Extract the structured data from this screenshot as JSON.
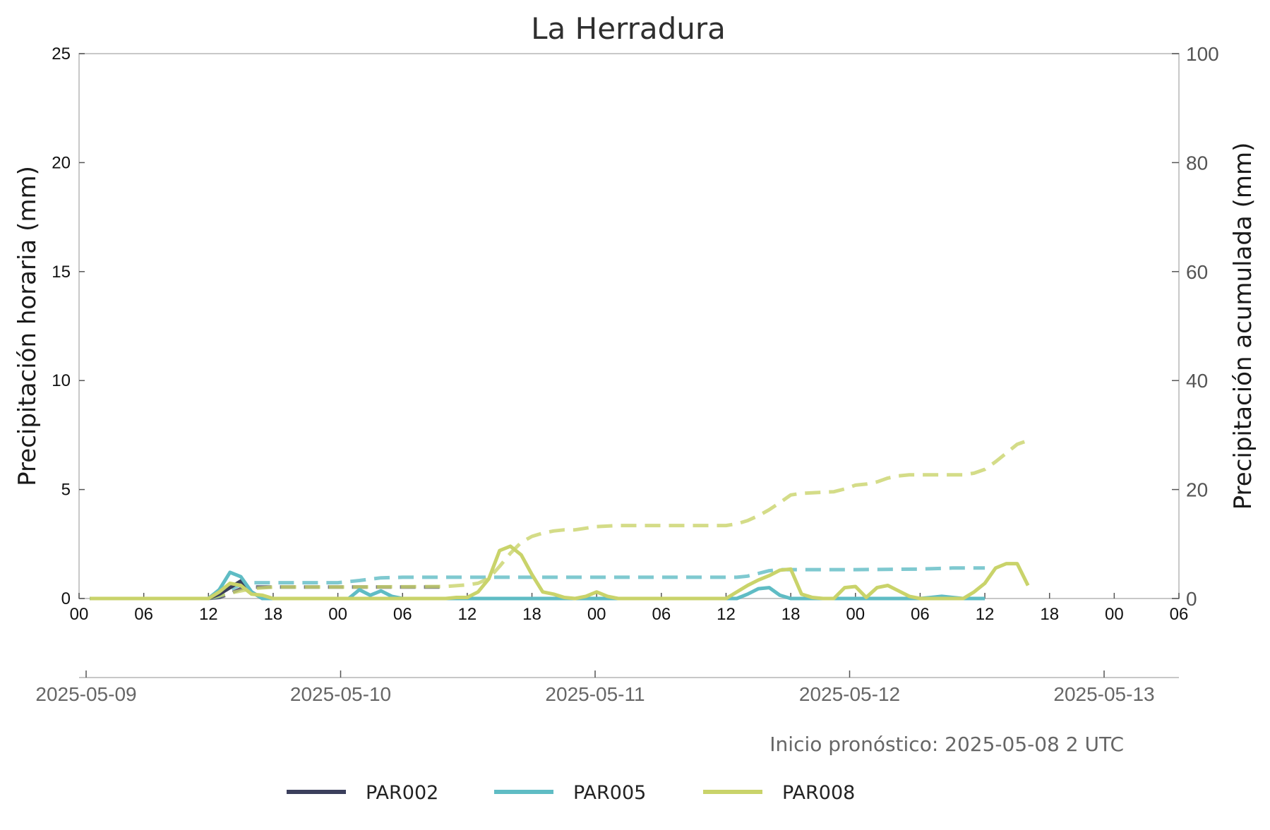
{
  "chart_data": {
    "type": "line",
    "title": "La Herradura",
    "ylabel": "Precipitación horaria (mm)",
    "ylabel_right": "Precipitación acumulada (mm)",
    "xlabel": "",
    "ylim": [
      0,
      25
    ],
    "ylim_right": [
      0,
      100
    ],
    "yticks": [
      "0",
      "5",
      "10",
      "15",
      "20",
      "25"
    ],
    "yticks_right": [
      "0",
      "20",
      "40",
      "60",
      "80",
      "100"
    ],
    "hour_ticks": [
      "00",
      "06",
      "12",
      "18",
      "00",
      "06",
      "12",
      "18",
      "00",
      "06",
      "12",
      "18",
      "00",
      "06",
      "12",
      "18",
      "00",
      "06"
    ],
    "date_ticks": [
      "2025-05-09",
      "2025-05-10",
      "2025-05-11",
      "2025-05-12",
      "2025-05-13"
    ],
    "x_start": "2025-05-09 00:00",
    "x_end": "2025-05-13 06:00",
    "grid": false,
    "legend_position": "bottom",
    "annotation": "Inicio pronóstico: 2025-05-08 2 UTC",
    "series": [
      {
        "name": "PAR002",
        "color": "#3b3f5c",
        "hourly": [
          [
            "2025-05-09 01:00",
            0
          ],
          [
            "2025-05-09 06:00",
            0
          ],
          [
            "2025-05-09 12:00",
            0
          ],
          [
            "2025-05-09 13:00",
            0.2
          ],
          [
            "2025-05-09 14:00",
            0.5
          ],
          [
            "2025-05-09 15:00",
            0.8
          ],
          [
            "2025-05-09 16:00",
            0.3
          ],
          [
            "2025-05-09 17:00",
            0
          ],
          [
            "2025-05-10 00:00",
            0
          ],
          [
            "2025-05-10 06:00",
            0
          ],
          [
            "2025-05-10 10:00",
            0
          ]
        ],
        "accumulated": [
          [
            "2025-05-09 01:00",
            0
          ],
          [
            "2025-05-09 12:00",
            0
          ],
          [
            "2025-05-09 13:00",
            0.2
          ],
          [
            "2025-05-09 14:00",
            0.9
          ],
          [
            "2025-05-09 15:00",
            1.8
          ],
          [
            "2025-05-09 16:00",
            2.1
          ],
          [
            "2025-05-09 18:00",
            2.1
          ],
          [
            "2025-05-10 00:00",
            2.1
          ],
          [
            "2025-05-10 10:00",
            2.1
          ]
        ]
      },
      {
        "name": "PAR005",
        "color": "#5fbcc4",
        "hourly": [
          [
            "2025-05-09 01:00",
            0
          ],
          [
            "2025-05-09 06:00",
            0
          ],
          [
            "2025-05-09 12:00",
            0
          ],
          [
            "2025-05-09 13:00",
            0.4
          ],
          [
            "2025-05-09 14:00",
            1.2
          ],
          [
            "2025-05-09 15:00",
            1.0
          ],
          [
            "2025-05-09 16:00",
            0.3
          ],
          [
            "2025-05-09 17:00",
            0
          ],
          [
            "2025-05-10 00:00",
            0
          ],
          [
            "2025-05-10 01:00",
            0
          ],
          [
            "2025-05-10 02:00",
            0.4
          ],
          [
            "2025-05-10 03:00",
            0.15
          ],
          [
            "2025-05-10 04:00",
            0.35
          ],
          [
            "2025-05-10 05:00",
            0.1
          ],
          [
            "2025-05-10 06:00",
            0
          ],
          [
            "2025-05-10 12:00",
            0
          ],
          [
            "2025-05-11 00:00",
            0
          ],
          [
            "2025-05-11 12:00",
            0
          ],
          [
            "2025-05-11 13:00",
            0
          ],
          [
            "2025-05-11 14:00",
            0.2
          ],
          [
            "2025-05-11 15:00",
            0.45
          ],
          [
            "2025-05-11 16:00",
            0.5
          ],
          [
            "2025-05-11 17:00",
            0.15
          ],
          [
            "2025-05-11 18:00",
            0
          ],
          [
            "2025-05-12 00:00",
            0
          ],
          [
            "2025-05-12 06:00",
            0
          ],
          [
            "2025-05-12 07:00",
            0.05
          ],
          [
            "2025-05-12 08:00",
            0.1
          ],
          [
            "2025-05-12 09:00",
            0.05
          ],
          [
            "2025-05-12 10:00",
            0
          ],
          [
            "2025-05-12 12:00",
            0
          ]
        ],
        "accumulated": [
          [
            "2025-05-09 01:00",
            0
          ],
          [
            "2025-05-09 12:00",
            0
          ],
          [
            "2025-05-09 13:00",
            0.4
          ],
          [
            "2025-05-09 14:00",
            1.6
          ],
          [
            "2025-05-09 15:00",
            2.6
          ],
          [
            "2025-05-09 16:00",
            2.9
          ],
          [
            "2025-05-09 18:00",
            2.9
          ],
          [
            "2025-05-10 00:00",
            2.9
          ],
          [
            "2025-05-10 02:00",
            3.3
          ],
          [
            "2025-05-10 04:00",
            3.8
          ],
          [
            "2025-05-10 06:00",
            3.9
          ],
          [
            "2025-05-10 12:00",
            3.9
          ],
          [
            "2025-05-11 00:00",
            3.9
          ],
          [
            "2025-05-11 13:00",
            3.9
          ],
          [
            "2025-05-11 14:00",
            4.1
          ],
          [
            "2025-05-11 15:00",
            4.6
          ],
          [
            "2025-05-11 16:00",
            5.1
          ],
          [
            "2025-05-11 17:00",
            5.3
          ],
          [
            "2025-05-11 18:00",
            5.3
          ],
          [
            "2025-05-12 00:00",
            5.3
          ],
          [
            "2025-05-12 06:00",
            5.4
          ],
          [
            "2025-05-12 09:00",
            5.6
          ],
          [
            "2025-05-12 12:00",
            5.6
          ]
        ]
      },
      {
        "name": "PAR008",
        "color": "#c9d36a",
        "hourly": [
          [
            "2025-05-09 01:00",
            0
          ],
          [
            "2025-05-09 06:00",
            0
          ],
          [
            "2025-05-09 12:00",
            0
          ],
          [
            "2025-05-09 13:00",
            0.3
          ],
          [
            "2025-05-09 14:00",
            0.7
          ],
          [
            "2025-05-09 15:00",
            0.6
          ],
          [
            "2025-05-09 16:00",
            0.2
          ],
          [
            "2025-05-09 17:00",
            0.15
          ],
          [
            "2025-05-09 18:00",
            0
          ],
          [
            "2025-05-10 00:00",
            0
          ],
          [
            "2025-05-10 06:00",
            0
          ],
          [
            "2025-05-10 10:00",
            0
          ],
          [
            "2025-05-10 11:00",
            0.05
          ],
          [
            "2025-05-10 12:00",
            0.05
          ],
          [
            "2025-05-10 13:00",
            0.3
          ],
          [
            "2025-05-10 14:00",
            0.9
          ],
          [
            "2025-05-10 15:00",
            2.2
          ],
          [
            "2025-05-10 16:00",
            2.4
          ],
          [
            "2025-05-10 17:00",
            2.0
          ],
          [
            "2025-05-10 18:00",
            1.1
          ],
          [
            "2025-05-10 19:00",
            0.3
          ],
          [
            "2025-05-10 20:00",
            0.2
          ],
          [
            "2025-05-10 21:00",
            0.05
          ],
          [
            "2025-05-10 22:00",
            0
          ],
          [
            "2025-05-10 23:00",
            0.1
          ],
          [
            "2025-05-11 00:00",
            0.3
          ],
          [
            "2025-05-11 01:00",
            0.1
          ],
          [
            "2025-05-11 02:00",
            0
          ],
          [
            "2025-05-11 06:00",
            0
          ],
          [
            "2025-05-11 12:00",
            0
          ],
          [
            "2025-05-11 13:00",
            0.3
          ],
          [
            "2025-05-11 14:00",
            0.6
          ],
          [
            "2025-05-11 15:00",
            0.85
          ],
          [
            "2025-05-11 16:00",
            1.05
          ],
          [
            "2025-05-11 17:00",
            1.3
          ],
          [
            "2025-05-11 18:00",
            1.35
          ],
          [
            "2025-05-11 19:00",
            0.2
          ],
          [
            "2025-05-11 20:00",
            0.05
          ],
          [
            "2025-05-11 21:00",
            0
          ],
          [
            "2025-05-11 22:00",
            0
          ],
          [
            "2025-05-11 23:00",
            0.5
          ],
          [
            "2025-05-12 00:00",
            0.55
          ],
          [
            "2025-05-12 01:00",
            0.05
          ],
          [
            "2025-05-12 02:00",
            0.5
          ],
          [
            "2025-05-12 03:00",
            0.6
          ],
          [
            "2025-05-12 04:00",
            0.35
          ],
          [
            "2025-05-12 05:00",
            0.1
          ],
          [
            "2025-05-12 06:00",
            0
          ],
          [
            "2025-05-12 10:00",
            0
          ],
          [
            "2025-05-12 11:00",
            0.3
          ],
          [
            "2025-05-12 12:00",
            0.7
          ],
          [
            "2025-05-12 13:00",
            1.4
          ],
          [
            "2025-05-12 14:00",
            1.6
          ],
          [
            "2025-05-12 15:00",
            1.6
          ],
          [
            "2025-05-12 16:00",
            0.6
          ]
        ],
        "accumulated": [
          [
            "2025-05-09 01:00",
            0
          ],
          [
            "2025-05-09 12:00",
            0
          ],
          [
            "2025-05-09 14:00",
            1.0
          ],
          [
            "2025-05-09 16:00",
            1.8
          ],
          [
            "2025-05-09 18:00",
            2.1
          ],
          [
            "2025-05-10 00:00",
            2.1
          ],
          [
            "2025-05-10 10:00",
            2.2
          ],
          [
            "2025-05-10 12:00",
            2.5
          ],
          [
            "2025-05-10 13:00",
            2.8
          ],
          [
            "2025-05-10 14:00",
            3.7
          ],
          [
            "2025-05-10 15:00",
            5.9
          ],
          [
            "2025-05-10 16:00",
            8.3
          ],
          [
            "2025-05-10 17:00",
            10.3
          ],
          [
            "2025-05-10 18:00",
            11.4
          ],
          [
            "2025-05-10 19:00",
            12.0
          ],
          [
            "2025-05-10 20:00",
            12.4
          ],
          [
            "2025-05-10 21:00",
            12.6
          ],
          [
            "2025-05-10 22:00",
            12.6
          ],
          [
            "2025-05-11 00:00",
            13.2
          ],
          [
            "2025-05-11 02:00",
            13.4
          ],
          [
            "2025-05-11 12:00",
            13.4
          ],
          [
            "2025-05-11 13:00",
            13.7
          ],
          [
            "2025-05-11 14:00",
            14.3
          ],
          [
            "2025-05-11 15:00",
            15.2
          ],
          [
            "2025-05-11 16:00",
            16.3
          ],
          [
            "2025-05-11 17:00",
            17.6
          ],
          [
            "2025-05-11 18:00",
            19.0
          ],
          [
            "2025-05-11 19:00",
            19.3
          ],
          [
            "2025-05-11 22:00",
            19.6
          ],
          [
            "2025-05-11 23:00",
            20.1
          ],
          [
            "2025-05-12 00:00",
            20.8
          ],
          [
            "2025-05-12 01:00",
            21.0
          ],
          [
            "2025-05-12 02:00",
            21.4
          ],
          [
            "2025-05-12 03:00",
            22.1
          ],
          [
            "2025-05-12 04:00",
            22.5
          ],
          [
            "2025-05-12 05:00",
            22.7
          ],
          [
            "2025-05-12 06:00",
            22.7
          ],
          [
            "2025-05-12 10:00",
            22.7
          ],
          [
            "2025-05-12 11:00",
            23.0
          ],
          [
            "2025-05-12 12:00",
            23.7
          ],
          [
            "2025-05-12 13:00",
            25.1
          ],
          [
            "2025-05-12 14:00",
            26.7
          ],
          [
            "2025-05-12 15:00",
            28.3
          ],
          [
            "2025-05-12 16:00",
            29.0
          ]
        ]
      }
    ]
  }
}
